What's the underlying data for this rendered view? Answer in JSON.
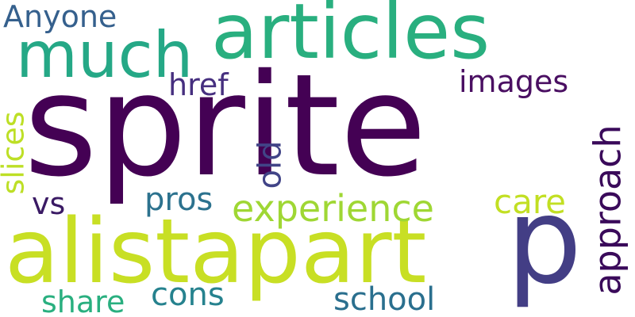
{
  "words": {
    "sprite": "sprite",
    "alistapart": "alistapart",
    "p": "p",
    "articles": "articles",
    "much": "much",
    "anyone": "Anyone",
    "href": "href",
    "images": "images",
    "slices": "slices",
    "vs": "vs",
    "pros": "pros",
    "experience": "experience",
    "old": "old",
    "care": "care",
    "approach": "approach",
    "cons": "cons",
    "share": "share",
    "school": "school"
  },
  "colors": {
    "background": "#ffffff",
    "palette": [
      "#440154",
      "#433e85",
      "#35608d",
      "#2c728e",
      "#26828e",
      "#29af7f",
      "#9fd734",
      "#c8df24"
    ]
  }
}
